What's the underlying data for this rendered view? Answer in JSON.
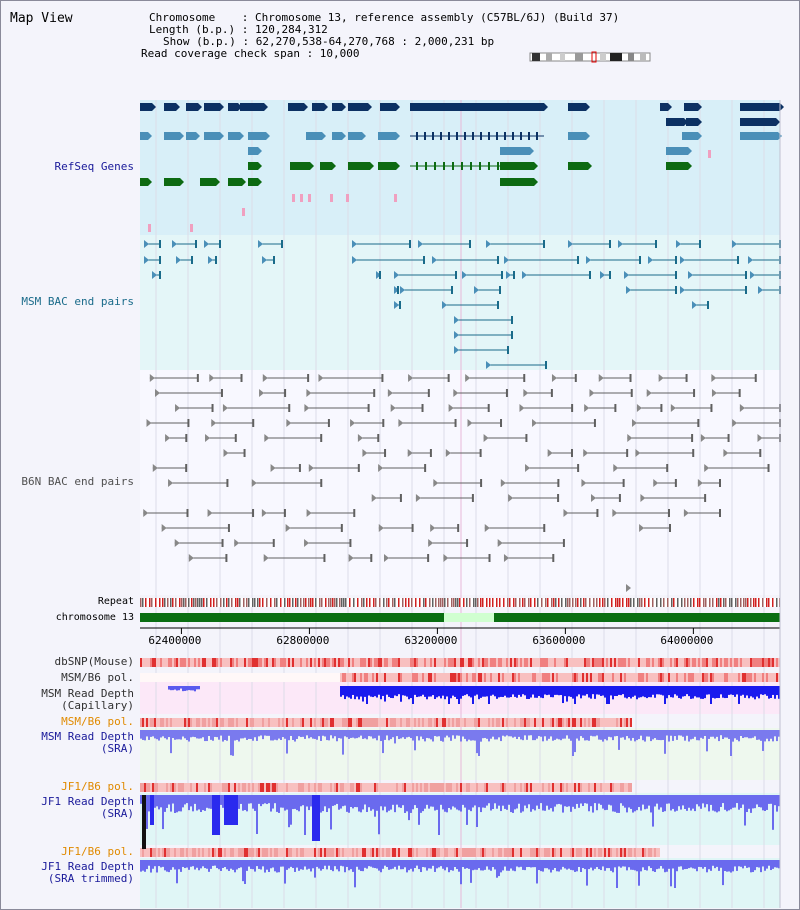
{
  "header": {
    "title": "Map View",
    "chromosome_line": "Chromosome    : Chromosome 13, reference assembly (C57BL/6J) (Build 37)",
    "length_line": "Length (b.p.) : 120,284,312",
    "show_line": "Show (b.p.) : 62,270,538-64,270,768 : 2,000,231 bp",
    "span_line": "Read coverage check span : 10,000"
  },
  "tracks": {
    "refseq": "RefSeq Genes",
    "msm_bac": "MSM BAC end pairs",
    "b6n_bac": "B6N BAC end pairs",
    "repeat": "Repeat",
    "chromosome": "chromosome 13",
    "dbsnp": "dbSNP(Mouse)",
    "msm_b6_pol_1": "MSM/B6 pol.",
    "msm_depth_cap_1": "MSM Read Depth",
    "msm_depth_cap_2": "(Capillary)",
    "msm_b6_pol_2": "MSM/B6 pol.",
    "msm_depth_sra_1": "MSM Read Depth",
    "msm_depth_sra_2": "(SRA)",
    "jf1_b6_pol_1": "JF1/B6 pol.",
    "jf1_depth_sra_1": "JF1 Read Depth",
    "jf1_depth_sra_2": "(SRA)",
    "jf1_b6_pol_2": "JF1/B6 pol.",
    "jf1_depth_trim_1": "JF1 Read Depth",
    "jf1_depth_trim_2": "(SRA trimmed)"
  },
  "axis": {
    "tick_values": [
      62400000,
      62800000,
      63200000,
      63600000,
      64000000
    ],
    "tick_labels": [
      "62400000",
      "62800000",
      "63200000",
      "63600000",
      "64000000"
    ]
  },
  "colors": {
    "refseq_bg": "#d8eff8",
    "msm_bg": "#e4f6f8",
    "gene_dark": "#0c3163",
    "gene_mid": "#4a8fb8",
    "gene_green": "#0d6a12",
    "msm_line": "#1a6b8a",
    "b6n_line": "#606060",
    "chrom_green": "#0a6e12",
    "depth_blue": "#2222ee",
    "pol_red": "#e03030",
    "label_blue": "#1a1a9a",
    "label_teal": "#1a6b8a",
    "label_gray": "#505050",
    "label_orange": "#e08a00"
  }
}
